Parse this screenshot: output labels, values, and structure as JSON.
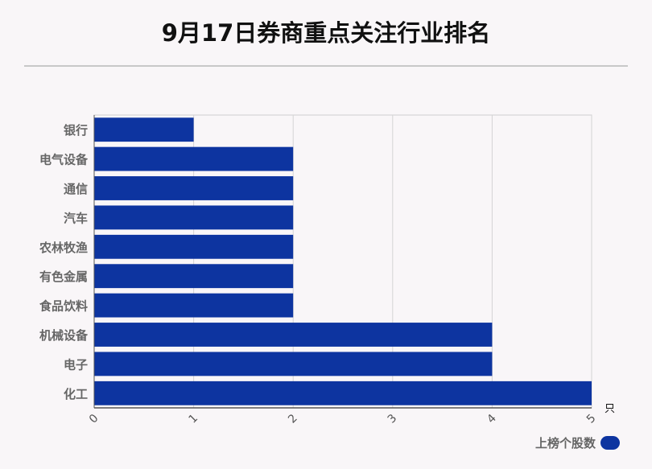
{
  "title": "9月17日券商重点关注行业排名",
  "chart_data": {
    "type": "bar",
    "orientation": "horizontal",
    "title": "9月17日券商重点关注行业排名",
    "categories": [
      "银行",
      "电气设备",
      "通信",
      "汽车",
      "农林牧渔",
      "有色金属",
      "食品饮料",
      "机械设备",
      "电子",
      "化工"
    ],
    "series": [
      {
        "name": "上榜个股数",
        "values": [
          1,
          2,
          2,
          2,
          2,
          2,
          2,
          4,
          4,
          5
        ]
      }
    ],
    "xlim": [
      0,
      5
    ],
    "xticks": [
      0,
      1,
      2,
      3,
      4,
      5
    ],
    "xunit": "只",
    "grid": true,
    "legend_position": "bottom-right",
    "bar_color": "#0d34a0"
  }
}
